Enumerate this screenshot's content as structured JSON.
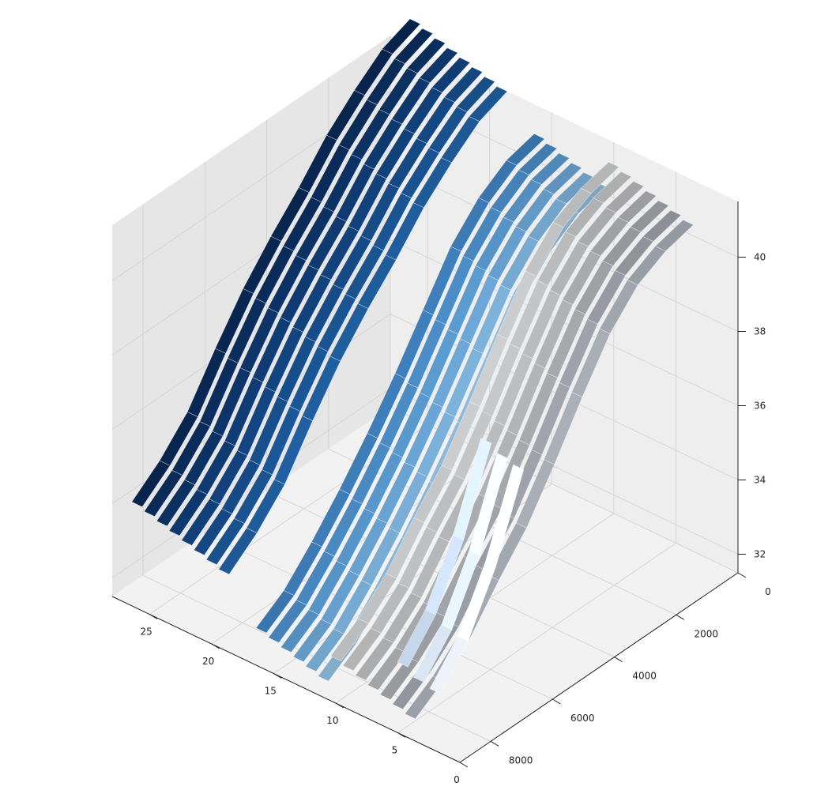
{
  "chart_data": {
    "type": "surface3d",
    "title": "",
    "xlabel": "",
    "ylabel": "",
    "zlabel": "",
    "x_axis": {
      "ticks": [
        0,
        5,
        10,
        15,
        20,
        25
      ],
      "tick_labels": [
        "0",
        "5",
        "10",
        "15",
        "20",
        "25"
      ],
      "range": [
        0,
        28
      ]
    },
    "y_axis": {
      "ticks": [
        0,
        2000,
        4000,
        6000,
        8000
      ],
      "tick_labels": [
        "0",
        "2000",
        "4000",
        "6000",
        "8000"
      ],
      "range": [
        0,
        9000
      ]
    },
    "z_axis": {
      "ticks": [
        32,
        34,
        36,
        38,
        40
      ],
      "tick_labels": [
        "32",
        "34",
        "36",
        "38",
        "40"
      ],
      "range": [
        31.5,
        41.5
      ]
    },
    "grid": true,
    "colormaps": [
      "Blues",
      "Greys"
    ],
    "ribbons": [
      {
        "x": 2,
        "color": "#f1f6fd",
        "z": [
          33.1,
          34.0,
          35.5,
          37.6
        ]
      },
      {
        "x": 3.3,
        "color": "#dde9f6",
        "z": [
          33.2,
          34.1,
          35.6,
          37.7
        ]
      },
      {
        "x": 4.6,
        "color": "#c9daee",
        "z": [
          33.4,
          34.3,
          35.8,
          37.9
        ]
      },
      {
        "x": 4,
        "color": "#a4aab2",
        "z": [
          32.1,
          32.6,
          33.3,
          34.3,
          35.2,
          36.4,
          37.7,
          38.9,
          39.7,
          40.1,
          40.3
        ]
      },
      {
        "x": 5,
        "color": "#9a9fa7",
        "z": [
          32.2,
          32.7,
          33.4,
          34.4,
          35.3,
          36.5,
          37.8,
          39.0,
          39.8,
          40.2,
          40.4
        ]
      },
      {
        "x": 6,
        "color": "#a1a4a9",
        "z": [
          32.3,
          32.8,
          33.5,
          34.5,
          35.4,
          36.6,
          37.9,
          39.1,
          39.9,
          40.3,
          40.5
        ]
      },
      {
        "x": 7,
        "color": "#acaeb1",
        "z": [
          32.4,
          32.9,
          33.6,
          34.6,
          35.5,
          36.7,
          38.0,
          39.2,
          40.0,
          40.4,
          40.6
        ]
      },
      {
        "x": 8,
        "color": "#b6b7b9",
        "z": [
          32.5,
          33.0,
          33.7,
          34.7,
          35.6,
          36.8,
          38.1,
          39.3,
          40.1,
          40.5,
          40.7
        ]
      },
      {
        "x": 9,
        "color": "#bfc0c1",
        "z": [
          32.6,
          33.1,
          33.8,
          34.8,
          35.7,
          36.9,
          38.2,
          39.4,
          40.2,
          40.6,
          40.8
        ]
      },
      {
        "x": 10,
        "color": "#c7c8c9",
        "z": [
          32.7,
          33.2,
          33.9,
          34.9,
          35.8,
          37.0,
          38.3,
          39.5,
          40.3,
          40.7,
          40.9
        ]
      },
      {
        "x": 11,
        "color": "#8bb7d8",
        "z": [
          32.0,
          32.5,
          33.3,
          34.2,
          35.2,
          36.3,
          37.5,
          38.7,
          39.5,
          40.0,
          40.2
        ]
      },
      {
        "x": 12,
        "color": "#7aaed6",
        "z": [
          32.1,
          32.6,
          33.4,
          34.3,
          35.3,
          36.4,
          37.6,
          38.8,
          39.6,
          40.1,
          40.3
        ]
      },
      {
        "x": 13,
        "color": "#69a3d2",
        "z": [
          32.2,
          32.7,
          33.5,
          34.4,
          35.4,
          36.5,
          37.7,
          38.9,
          39.7,
          40.2,
          40.4
        ]
      },
      {
        "x": 14,
        "color": "#5897cb",
        "z": [
          32.3,
          32.8,
          33.6,
          34.5,
          35.5,
          36.6,
          37.8,
          39.0,
          39.8,
          40.3,
          40.5
        ]
      },
      {
        "x": 15,
        "color": "#4a8ac3",
        "z": [
          32.4,
          32.9,
          33.7,
          34.6,
          35.6,
          36.7,
          37.9,
          39.1,
          39.9,
          40.4,
          40.6
        ]
      },
      {
        "x": 16,
        "color": "#3e7db8",
        "z": [
          32.5,
          33.0,
          33.8,
          34.7,
          35.7,
          36.8,
          38.0,
          39.2,
          40.0,
          40.5,
          40.7
        ]
      },
      {
        "x": 19,
        "color": "#1f5e9e",
        "z": [
          33.6,
          34.2,
          35.0,
          36.2,
          37.3,
          38.2,
          39.0,
          39.9,
          40.6,
          41.2,
          41.5
        ]
      },
      {
        "x": 20,
        "color": "#1a5594",
        "z": [
          33.7,
          34.3,
          35.1,
          36.3,
          37.4,
          38.3,
          39.1,
          40.0,
          40.7,
          41.3,
          41.6
        ]
      },
      {
        "x": 21,
        "color": "#164c89",
        "z": [
          33.8,
          34.4,
          35.2,
          36.4,
          37.5,
          38.4,
          39.2,
          40.1,
          40.8,
          41.4,
          41.7
        ]
      },
      {
        "x": 22,
        "color": "#12437e",
        "z": [
          33.9,
          34.5,
          35.3,
          36.5,
          37.6,
          38.5,
          39.3,
          40.2,
          40.9,
          41.5,
          41.8
        ]
      },
      {
        "x": 23,
        "color": "#0f3b72",
        "z": [
          34.0,
          34.6,
          35.4,
          36.6,
          37.7,
          38.6,
          39.4,
          40.3,
          41.0,
          41.6,
          41.9
        ]
      },
      {
        "x": 24,
        "color": "#0c3366",
        "z": [
          34.1,
          34.7,
          35.5,
          36.7,
          37.8,
          38.7,
          39.5,
          40.4,
          41.1,
          41.7,
          42.0
        ]
      },
      {
        "x": 25,
        "color": "#0a2c5b",
        "z": [
          34.2,
          34.8,
          35.6,
          36.8,
          37.9,
          38.8,
          39.6,
          40.5,
          41.2,
          41.8,
          42.1
        ]
      },
      {
        "x": 26,
        "color": "#082650",
        "z": [
          34.3,
          34.9,
          35.7,
          36.9,
          38.0,
          38.9,
          39.7,
          40.6,
          41.3,
          41.9,
          42.2
        ]
      }
    ]
  }
}
